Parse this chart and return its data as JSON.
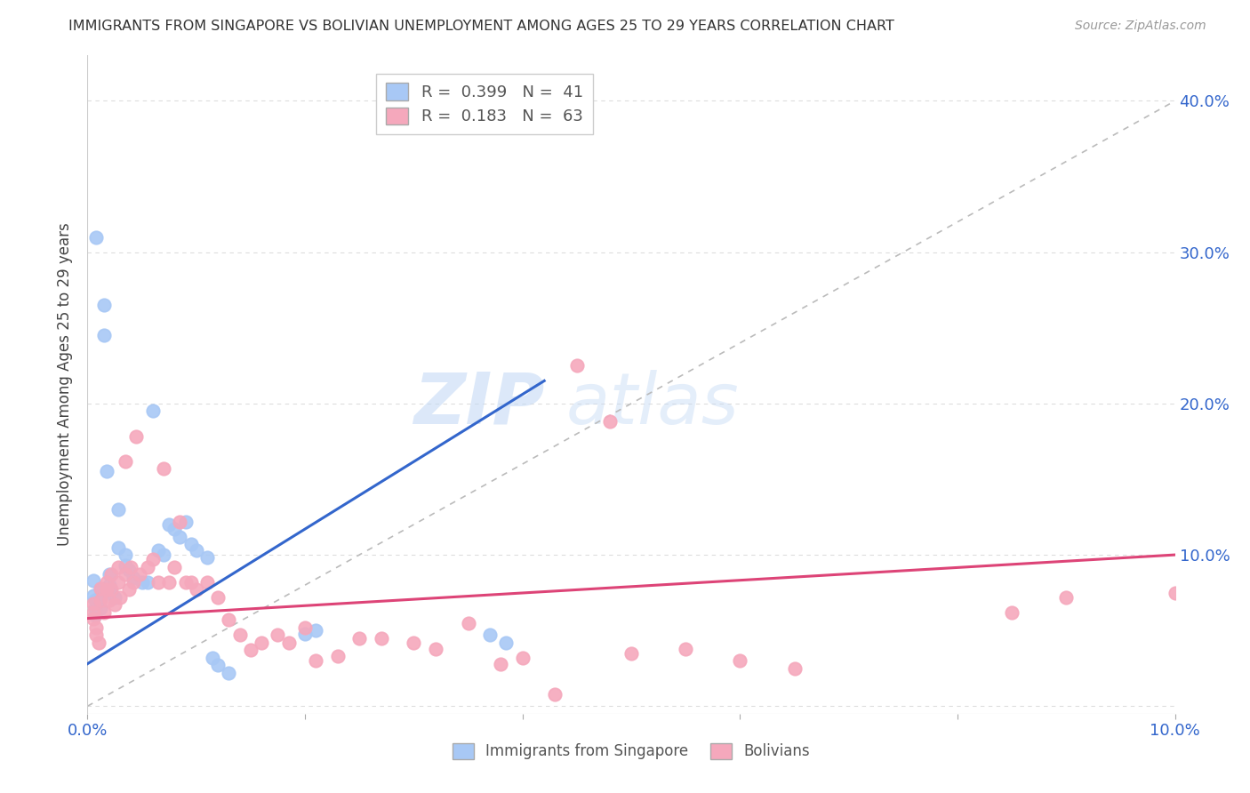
{
  "title": "IMMIGRANTS FROM SINGAPORE VS BOLIVIAN UNEMPLOYMENT AMONG AGES 25 TO 29 YEARS CORRELATION CHART",
  "source": "Source: ZipAtlas.com",
  "ylabel": "Unemployment Among Ages 25 to 29 years",
  "xlim": [
    0.0,
    0.1
  ],
  "ylim": [
    -0.005,
    0.43
  ],
  "xtick_positions": [
    0.0,
    0.02,
    0.04,
    0.06,
    0.08,
    0.1
  ],
  "xticklabels": [
    "0.0%",
    "",
    "",
    "",
    "",
    "10.0%"
  ],
  "ytick_positions": [
    0.0,
    0.1,
    0.2,
    0.3,
    0.4
  ],
  "yticklabels_right": [
    "",
    "10.0%",
    "20.0%",
    "30.0%",
    "40.0%"
  ],
  "singapore_color": "#a8c8f5",
  "bolivian_color": "#f5a8bc",
  "singapore_line_color": "#3366cc",
  "bolivian_line_color": "#dd4477",
  "diag_line_color": "#bbbbbb",
  "R_singapore": 0.399,
  "N_singapore": 41,
  "R_bolivian": 0.183,
  "N_bolivian": 63,
  "watermark_zip": "ZIP",
  "watermark_atlas": "atlas",
  "sg_trend_x": [
    0.0,
    0.042
  ],
  "sg_trend_y": [
    0.028,
    0.215
  ],
  "bo_trend_x": [
    0.0,
    0.1
  ],
  "bo_trend_y": [
    0.058,
    0.1
  ],
  "singapore_points": [
    [
      0.0008,
      0.31
    ],
    [
      0.0015,
      0.265
    ],
    [
      0.0015,
      0.245
    ],
    [
      0.0018,
      0.155
    ],
    [
      0.0005,
      0.083
    ],
    [
      0.0005,
      0.073
    ],
    [
      0.0007,
      0.07
    ],
    [
      0.0007,
      0.065
    ],
    [
      0.0007,
      0.06
    ],
    [
      0.0012,
      0.078
    ],
    [
      0.0012,
      0.072
    ],
    [
      0.0012,
      0.065
    ],
    [
      0.002,
      0.087
    ],
    [
      0.002,
      0.08
    ],
    [
      0.0022,
      0.075
    ],
    [
      0.0025,
      0.072
    ],
    [
      0.0028,
      0.13
    ],
    [
      0.0028,
      0.105
    ],
    [
      0.0035,
      0.1
    ],
    [
      0.0035,
      0.093
    ],
    [
      0.0038,
      0.09
    ],
    [
      0.0042,
      0.085
    ],
    [
      0.005,
      0.082
    ],
    [
      0.0055,
      0.082
    ],
    [
      0.006,
      0.195
    ],
    [
      0.0065,
      0.103
    ],
    [
      0.007,
      0.1
    ],
    [
      0.0075,
      0.12
    ],
    [
      0.008,
      0.117
    ],
    [
      0.0085,
      0.112
    ],
    [
      0.009,
      0.122
    ],
    [
      0.0095,
      0.107
    ],
    [
      0.01,
      0.103
    ],
    [
      0.011,
      0.098
    ],
    [
      0.0115,
      0.032
    ],
    [
      0.012,
      0.027
    ],
    [
      0.013,
      0.022
    ],
    [
      0.02,
      0.048
    ],
    [
      0.021,
      0.05
    ],
    [
      0.037,
      0.047
    ],
    [
      0.0385,
      0.042
    ]
  ],
  "bolivian_points": [
    [
      0.0005,
      0.068
    ],
    [
      0.0005,
      0.062
    ],
    [
      0.0005,
      0.058
    ],
    [
      0.0008,
      0.052
    ],
    [
      0.0008,
      0.047
    ],
    [
      0.001,
      0.042
    ],
    [
      0.0012,
      0.078
    ],
    [
      0.0012,
      0.07
    ],
    [
      0.0015,
      0.062
    ],
    [
      0.0018,
      0.082
    ],
    [
      0.0018,
      0.077
    ],
    [
      0.002,
      0.07
    ],
    [
      0.0022,
      0.087
    ],
    [
      0.0022,
      0.077
    ],
    [
      0.0025,
      0.067
    ],
    [
      0.0028,
      0.092
    ],
    [
      0.0028,
      0.082
    ],
    [
      0.003,
      0.072
    ],
    [
      0.0035,
      0.162
    ],
    [
      0.0035,
      0.087
    ],
    [
      0.0038,
      0.077
    ],
    [
      0.004,
      0.092
    ],
    [
      0.0042,
      0.082
    ],
    [
      0.0045,
      0.178
    ],
    [
      0.0048,
      0.087
    ],
    [
      0.0055,
      0.092
    ],
    [
      0.006,
      0.097
    ],
    [
      0.0065,
      0.082
    ],
    [
      0.007,
      0.157
    ],
    [
      0.0075,
      0.082
    ],
    [
      0.008,
      0.092
    ],
    [
      0.0085,
      0.122
    ],
    [
      0.009,
      0.082
    ],
    [
      0.0095,
      0.082
    ],
    [
      0.01,
      0.077
    ],
    [
      0.011,
      0.082
    ],
    [
      0.012,
      0.072
    ],
    [
      0.013,
      0.057
    ],
    [
      0.014,
      0.047
    ],
    [
      0.015,
      0.037
    ],
    [
      0.016,
      0.042
    ],
    [
      0.0175,
      0.047
    ],
    [
      0.0185,
      0.042
    ],
    [
      0.02,
      0.052
    ],
    [
      0.021,
      0.03
    ],
    [
      0.023,
      0.033
    ],
    [
      0.025,
      0.045
    ],
    [
      0.027,
      0.045
    ],
    [
      0.03,
      0.042
    ],
    [
      0.032,
      0.038
    ],
    [
      0.035,
      0.055
    ],
    [
      0.038,
      0.028
    ],
    [
      0.04,
      0.032
    ],
    [
      0.043,
      0.008
    ],
    [
      0.045,
      0.225
    ],
    [
      0.048,
      0.188
    ],
    [
      0.05,
      0.035
    ],
    [
      0.055,
      0.038
    ],
    [
      0.06,
      0.03
    ],
    [
      0.065,
      0.025
    ],
    [
      0.085,
      0.062
    ],
    [
      0.09,
      0.072
    ],
    [
      0.1,
      0.075
    ]
  ]
}
